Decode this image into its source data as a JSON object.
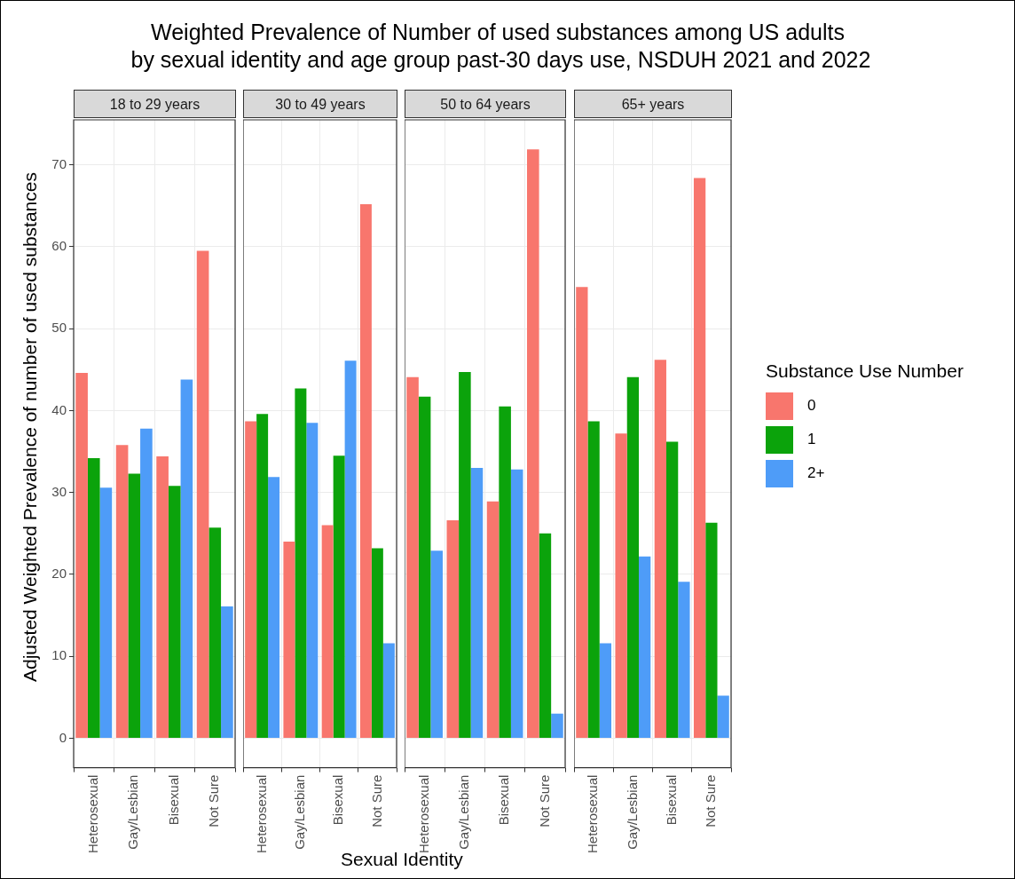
{
  "chart_data": [
    {
      "type": "bar",
      "title": "Weighted Prevalence of Number of used substances among US adults\n by sexual identity and age group past-30 days use, NSDUH 2021 and 2022",
      "subtitle": "18 to 29 years",
      "ylabel": "Adjusted Weighted Prevalence of number of used substances",
      "xlabel": "Sexual Identity",
      "legend": "right",
      "legend_title": "Substance Use Number",
      "categories": [
        "Heterosexual",
        "Gay/Lesbian",
        "Bisexual",
        "Not Sure"
      ],
      "series": [
        {
          "name": "0",
          "color": "#f8766d",
          "values": [
            44.6,
            35.8,
            34.4,
            59.5
          ]
        },
        {
          "name": "1",
          "color": "#0ba30b",
          "values": [
            34.2,
            32.3,
            30.8,
            25.7
          ]
        },
        {
          "name": "2+",
          "color": "#4e9cf8",
          "values": [
            30.6,
            37.8,
            43.8,
            16.1
          ]
        }
      ],
      "ylim": [
        -3.6,
        75.5
      ],
      "yticks": [
        0,
        10,
        20,
        30,
        40,
        50,
        60,
        70
      ],
      "grid": true
    },
    {
      "type": "bar",
      "subtitle": "30 to 49 years",
      "categories": [
        "Heterosexual",
        "Gay/Lesbian",
        "Bisexual",
        "Not Sure"
      ],
      "series": [
        {
          "color": "#f8766d",
          "values": [
            38.7,
            24.0,
            26.0,
            65.2
          ]
        },
        {
          "color": "#0ba30b",
          "values": [
            39.6,
            42.7,
            34.5,
            23.2
          ]
        },
        {
          "color": "#4e9cf8",
          "values": [
            31.9,
            38.5,
            46.1,
            11.6
          ]
        }
      ],
      "ylim": [
        -3.6,
        75.5
      ],
      "yticks": [
        0,
        10,
        20,
        30,
        40,
        50,
        60,
        70
      ],
      "grid": true,
      "tick_labels": "x"
    },
    {
      "type": "bar",
      "subtitle": "50 to 64 years",
      "categories": [
        "Heterosexual",
        "Gay/Lesbian",
        "Bisexual",
        "Not Sure"
      ],
      "series": [
        {
          "color": "#f8766d",
          "values": [
            44.1,
            26.6,
            28.9,
            71.9
          ]
        },
        {
          "color": "#0ba30b",
          "values": [
            41.7,
            44.7,
            40.5,
            25.0
          ]
        },
        {
          "color": "#4e9cf8",
          "values": [
            22.9,
            33.0,
            32.8,
            3.0
          ]
        }
      ],
      "ylim": [
        -3.6,
        75.5
      ],
      "yticks": [
        0,
        10,
        20,
        30,
        40,
        50,
        60,
        70
      ],
      "grid": true,
      "tick_labels": "x"
    },
    {
      "type": "bar",
      "subtitle": "65+ years",
      "categories": [
        "Heterosexual",
        "Gay/Lesbian",
        "Bisexual",
        "Not Sure"
      ],
      "series": [
        {
          "color": "#f8766d",
          "values": [
            55.1,
            37.2,
            46.2,
            68.4
          ]
        },
        {
          "color": "#0ba30b",
          "values": [
            38.7,
            44.1,
            36.2,
            26.3
          ]
        },
        {
          "color": "#4e9cf8",
          "values": [
            11.6,
            22.2,
            19.1,
            5.2
          ]
        }
      ],
      "ylim": [
        -3.6,
        75.5
      ],
      "yticks": [
        0,
        10,
        20,
        30,
        40,
        50,
        60,
        70
      ],
      "grid": true,
      "tick_labels": "x"
    }
  ]
}
